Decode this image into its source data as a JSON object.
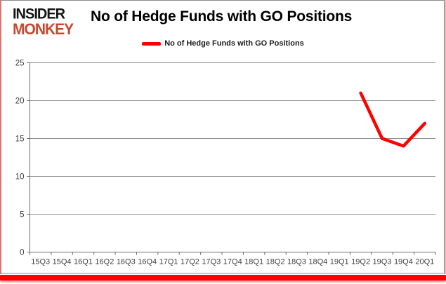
{
  "logo": {
    "line1": "INSIDER",
    "line2": "MONKEY"
  },
  "header": {
    "title": "No of Hedge Funds with GO Positions"
  },
  "legend": {
    "label": "No of Hedge Funds with GO Positions",
    "color": "#fb0200"
  },
  "colors": {
    "series_red": "#fb0200",
    "gridline": "#8f8f8f",
    "axis": "#6e6e6e",
    "tick_label": "#3f3f3f",
    "card_border": "#8c8c8c",
    "logo_red": "#c9472f",
    "logo_black": "#141414",
    "bottom_bar": "#fb0200"
  },
  "chart_data": {
    "type": "line",
    "title": "No of Hedge Funds with GO Positions",
    "categories": [
      "15Q3",
      "15Q4",
      "16Q1",
      "16Q2",
      "16Q3",
      "16Q4",
      "17Q1",
      "17Q2",
      "17Q3",
      "17Q4",
      "18Q1",
      "18Q2",
      "18Q3",
      "18Q4",
      "19Q1",
      "19Q2",
      "19Q3",
      "19Q4",
      "20Q1"
    ],
    "series": [
      {
        "name": "No of Hedge Funds with GO Positions",
        "color": "#fb0200",
        "values": [
          null,
          null,
          null,
          null,
          null,
          null,
          null,
          null,
          null,
          null,
          null,
          null,
          null,
          null,
          null,
          21,
          15,
          14,
          17
        ]
      }
    ],
    "xlabel": "",
    "ylabel": "",
    "ylim": [
      0,
      25
    ],
    "yticks": [
      0,
      5,
      10,
      15,
      20,
      25
    ],
    "grid": true,
    "legend_position": "top-center"
  }
}
